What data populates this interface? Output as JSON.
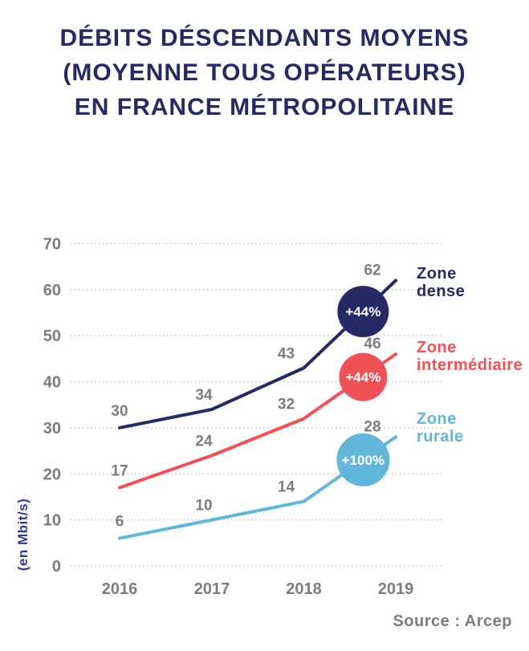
{
  "title": {
    "lines": [
      "DÉBITS DÉSCENDANTS MOYENS",
      "(MOYENNE TOUS OPÉRATEURS)",
      "EN FRANCE MÉTROPOLITAINE"
    ]
  },
  "source": "Source : Arcep",
  "colors": {
    "background": "#ffffff",
    "title_navy": "#262a64",
    "axis_gray": "#7b7c81",
    "gridline_gray": "#c7c8cc",
    "unit_blue": "#2e3c8e",
    "badge_text": "#ffffff"
  },
  "chart_data": {
    "type": "line",
    "title": "Débits déscendants moyens (moyenne tous opérateurs) en France métropolitaine",
    "categories": [
      "2016",
      "2017",
      "2018",
      "2019"
    ],
    "x": [
      2016,
      2017,
      2018,
      2019
    ],
    "xlabel": "",
    "ylabel": "(en Mbit/s)",
    "ylim": [
      0,
      70
    ],
    "yticks": [
      0,
      10,
      20,
      30,
      40,
      50,
      60,
      70
    ],
    "grid": "horizontal-dotted",
    "legend_position": "right",
    "series": [
      {
        "name": "Zone dense",
        "label_lines": [
          "Zone",
          "dense"
        ],
        "values": [
          30,
          34,
          43,
          62
        ],
        "color": "#262a64",
        "badge": "+44%"
      },
      {
        "name": "Zone intermédiaire",
        "label_lines": [
          "Zone",
          "intermédiaire"
        ],
        "values": [
          17,
          24,
          32,
          46
        ],
        "color": "#ee5156",
        "badge": "+44%"
      },
      {
        "name": "Zone rurale",
        "label_lines": [
          "Zone",
          "rurale"
        ],
        "values": [
          6,
          10,
          14,
          28
        ],
        "color": "#61b6d9",
        "badge": "+100%"
      }
    ]
  }
}
